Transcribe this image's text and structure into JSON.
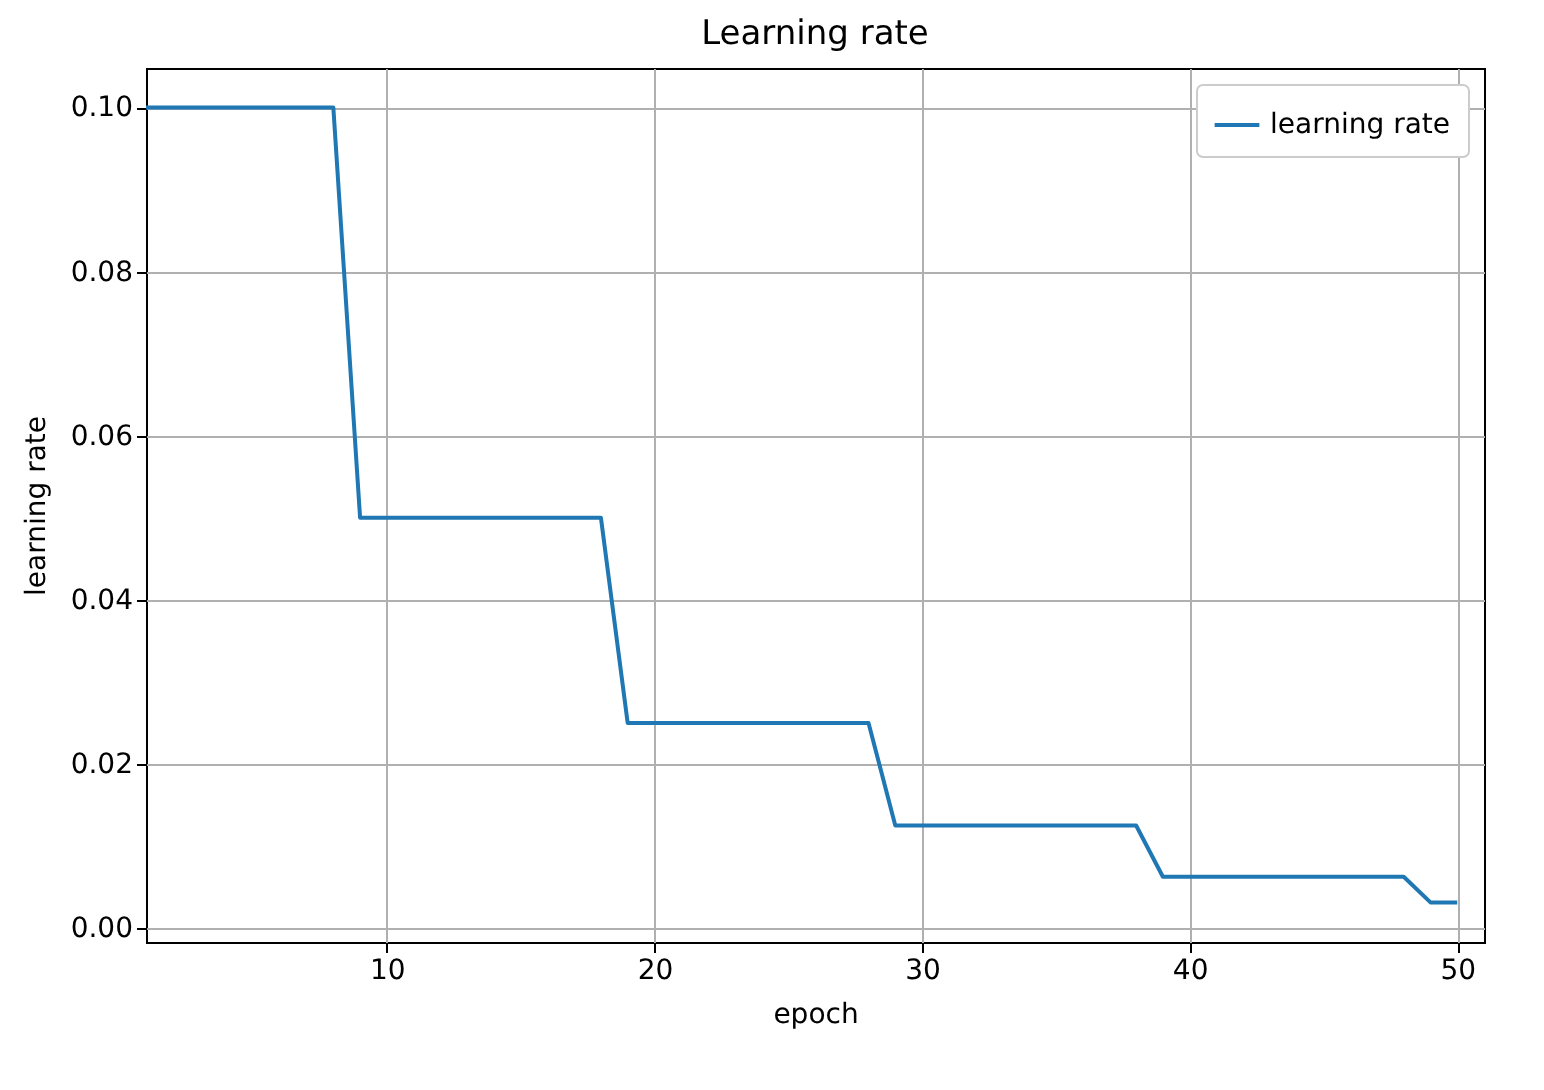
{
  "chart_data": {
    "type": "line",
    "title": "Learning rate",
    "xlabel": "epoch",
    "ylabel": "learning rate",
    "x": [
      1,
      2,
      3,
      4,
      5,
      6,
      7,
      8,
      9,
      10,
      11,
      12,
      13,
      14,
      15,
      16,
      17,
      18,
      19,
      20,
      21,
      22,
      23,
      24,
      25,
      26,
      27,
      28,
      29,
      30,
      31,
      32,
      33,
      34,
      35,
      36,
      37,
      38,
      39,
      40,
      41,
      42,
      43,
      44,
      45,
      46,
      47,
      48,
      49,
      50
    ],
    "series": [
      {
        "name": "learning rate",
        "color": "#1f77b4",
        "values": [
          0.1,
          0.1,
          0.1,
          0.1,
          0.1,
          0.1,
          0.1,
          0.1,
          0.05,
          0.05,
          0.05,
          0.05,
          0.05,
          0.05,
          0.05,
          0.05,
          0.05,
          0.05,
          0.025,
          0.025,
          0.025,
          0.025,
          0.025,
          0.025,
          0.025,
          0.025,
          0.025,
          0.025,
          0.0125,
          0.0125,
          0.0125,
          0.0125,
          0.0125,
          0.0125,
          0.0125,
          0.0125,
          0.0125,
          0.0125,
          0.00625,
          0.00625,
          0.00625,
          0.00625,
          0.00625,
          0.00625,
          0.00625,
          0.00625,
          0.00625,
          0.00625,
          0.003125,
          0.003125
        ]
      }
    ],
    "xlim": [
      1,
      51
    ],
    "xticks": [
      10,
      20,
      30,
      40,
      50
    ],
    "ylim": [
      -0.0017,
      0.1048
    ],
    "yticks": [
      {
        "value": 0,
        "label": "0.00"
      },
      {
        "value": 0.02,
        "label": "0.02"
      },
      {
        "value": 0.04,
        "label": "0.04"
      },
      {
        "value": 0.06,
        "label": "0.06"
      },
      {
        "value": 0.08,
        "label": "0.08"
      },
      {
        "value": 0.1,
        "label": "0.10"
      }
    ],
    "grid": true,
    "legend": "top right",
    "marker": "none",
    "line_style": "solid"
  }
}
